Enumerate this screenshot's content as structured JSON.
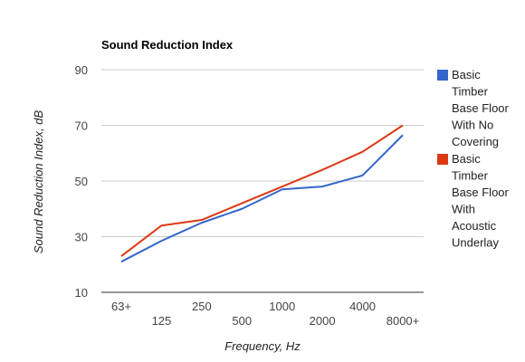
{
  "chart_data": {
    "type": "line",
    "title": "Sound Reduction Index",
    "xlabel": "Frequency, Hz",
    "ylabel": "Sound Reduction Index, dB",
    "categories": [
      "63+",
      "125",
      "250",
      "500",
      "1000",
      "2000",
      "4000",
      "8000+"
    ],
    "ylim": [
      10,
      90
    ],
    "yticks": [
      "10",
      "30",
      "50",
      "70",
      "90"
    ],
    "grid": true,
    "legend_position": "right",
    "series": [
      {
        "name": "Basic Timber Base Floor With No Covering",
        "legend_lines": [
          "Basic",
          "Timber",
          "Base Floor",
          "With No",
          "Covering"
        ],
        "color": "#3366cc",
        "values": [
          21,
          28.5,
          35,
          40,
          47,
          48,
          52,
          66.5
        ]
      },
      {
        "name": "Basic Timber Base Floor With Acoustic Underlay",
        "legend_lines": [
          "Basic",
          "Timber",
          "Base Floor",
          "With",
          "Acoustic",
          "Underlay"
        ],
        "color": "#dc3912",
        "values": [
          23,
          34,
          36,
          42,
          48,
          54,
          60.5,
          70
        ]
      }
    ]
  }
}
